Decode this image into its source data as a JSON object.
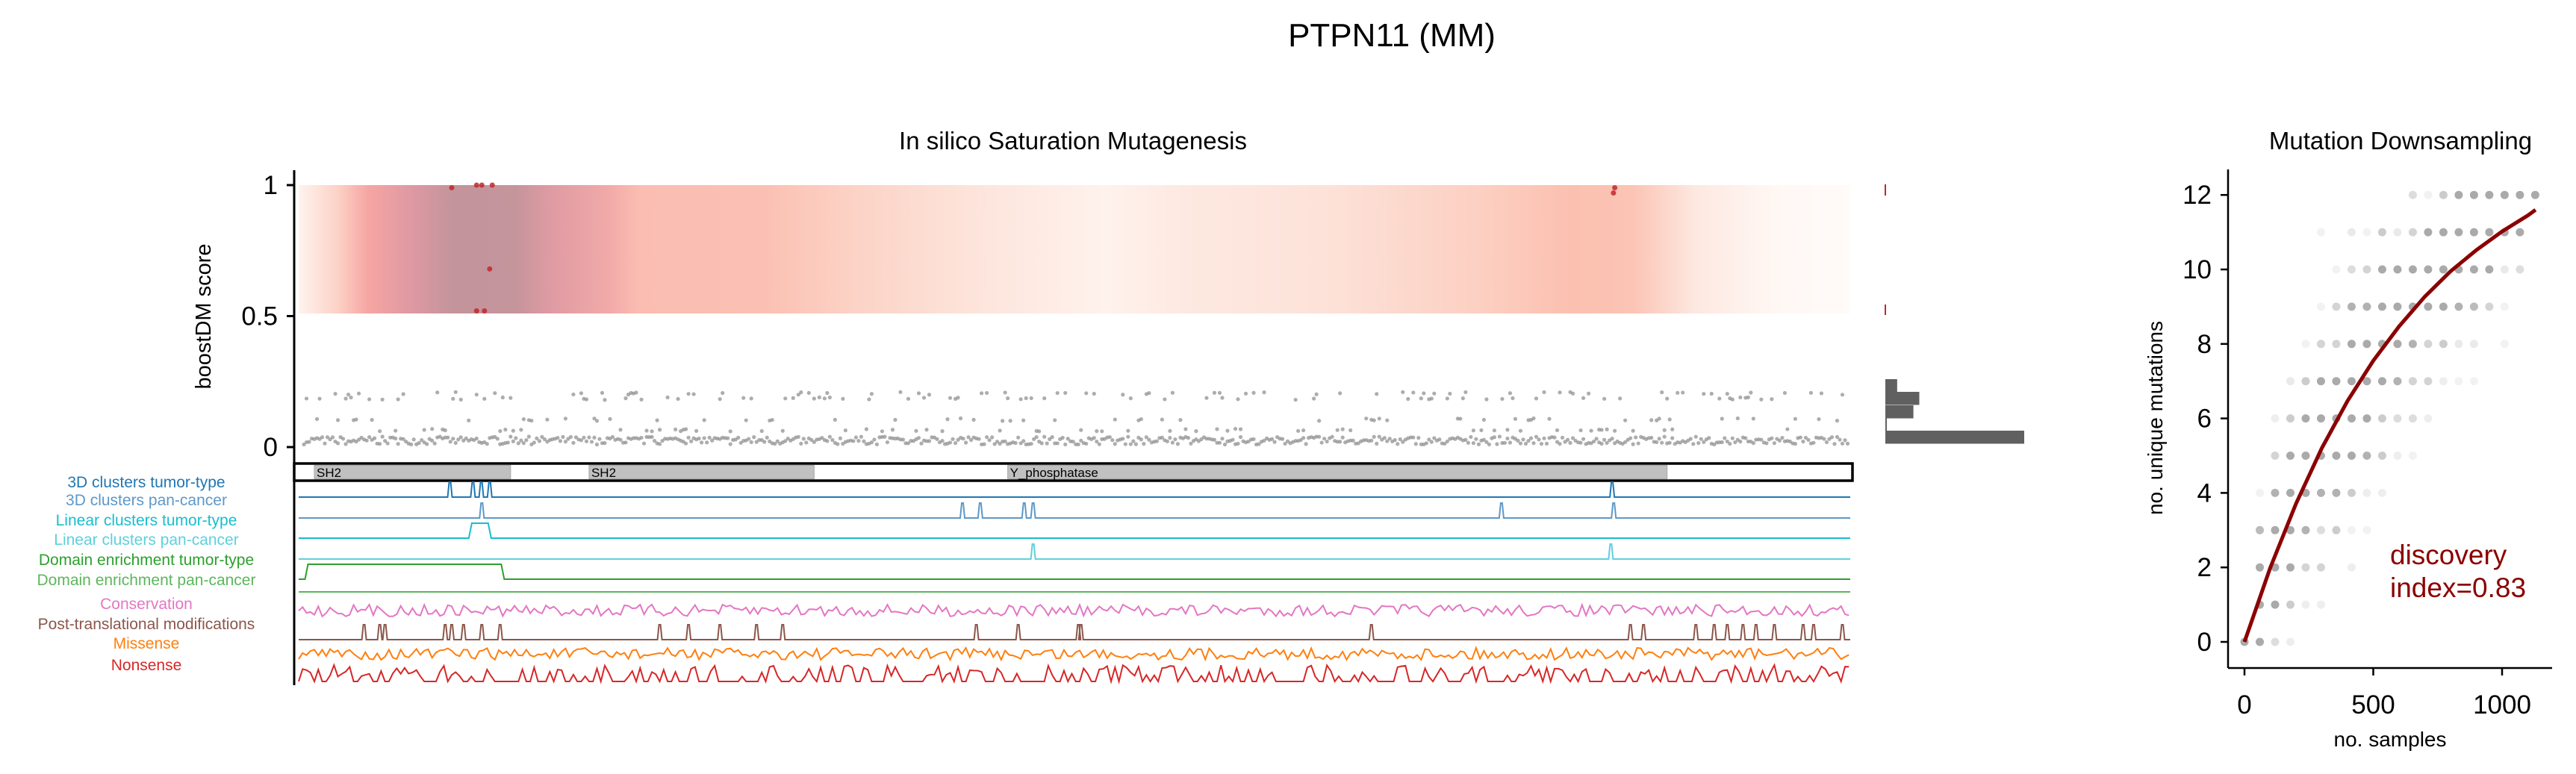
{
  "figure": {
    "title": "PTPN11 (MM)"
  },
  "chart_data": [
    {
      "type": "scatter",
      "title": "In silico Saturation Mutagenesis",
      "ylabel": "boostDM score",
      "xlabel": "",
      "ylim": [
        0,
        1
      ],
      "yticks": [
        "0",
        "0.5",
        "1"
      ],
      "ytick_values": [
        0,
        0.5,
        1
      ],
      "protein_length": 593,
      "domains": [
        {
          "name": "SH2",
          "start": 6,
          "end": 81
        },
        {
          "name": "SH2",
          "start": 111,
          "end": 197
        },
        {
          "name": "Y_phosphatase",
          "start": 271,
          "end": 523
        }
      ],
      "driver_mutations": [
        {
          "pos": 58.5,
          "score": 0.99
        },
        {
          "pos": 68,
          "score": 1.0
        },
        {
          "pos": 70,
          "score": 1.0
        },
        {
          "pos": 74,
          "score": 1.0
        },
        {
          "pos": 73,
          "score": 0.68
        },
        {
          "pos": 68,
          "score": 0.52
        },
        {
          "pos": 71,
          "score": 0.52
        },
        {
          "pos": 503,
          "score": 0.99
        },
        {
          "pos": 502.5,
          "score": 0.97
        }
      ],
      "score_histogram": {
        "bins": [
          "0-0.04",
          "0.04-0.08",
          "0.08-0.12",
          "0.12-0.16",
          "0.16-0.2"
        ],
        "counts": [
          188,
          2,
          38,
          46,
          16
        ]
      },
      "tracks": [
        {
          "label": "3D clusters tumor-type",
          "color": "#1f77b4",
          "kind": "peaks",
          "peaks": [
            57.8,
            66.6,
            69.8,
            73,
            502
          ]
        },
        {
          "label": "3D clusters pan-cancer",
          "color": "#5e98c8",
          "kind": "peaks",
          "peaks": [
            70,
            253.7,
            260.5,
            277.3,
            280.7,
            459.7,
            502.6
          ]
        },
        {
          "label": "Linear clusters tumor-type",
          "color": "#17becf",
          "kind": "step",
          "ranges": [
            [
              65.6,
              73
            ]
          ]
        },
        {
          "label": "Linear clusters pan-cancer",
          "color": "#5fd0dc",
          "kind": "peaks",
          "peaks": [
            280.7,
            501.5
          ]
        },
        {
          "label": "Domain enrichment tumor-type",
          "color": "#2ca02c",
          "kind": "step",
          "ranges": [
            [
              3,
              78
            ]
          ]
        },
        {
          "label": "Domain enrichment pan-cancer",
          "color": "#5db65d",
          "kind": "flat"
        },
        {
          "label": "Conservation",
          "color": "#e377c2",
          "kind": "noise"
        },
        {
          "label": "Post-translational modifications",
          "color": "#8c564b",
          "kind": "peaks",
          "peaks": [
            25,
            31,
            33,
            56,
            58.5,
            63,
            70,
            77,
            138,
            149,
            161,
            175,
            185,
            259,
            275,
            298,
            299,
            410,
            509,
            514,
            534,
            541,
            546,
            552,
            557,
            564,
            575,
            579,
            590
          ]
        },
        {
          "label": "Missense",
          "color": "#ff7f0e",
          "kind": "noise"
        },
        {
          "label": "Nonsense",
          "color": "#d62728",
          "kind": "spikes"
        }
      ]
    },
    {
      "type": "scatter",
      "title": "Mutation Downsampling",
      "xlabel": "no. samples",
      "ylabel": "no. unique mutations",
      "xlim": [
        -40,
        1160
      ],
      "ylim": [
        -0.5,
        12.7
      ],
      "xticks": [
        0,
        500,
        1000
      ],
      "yticks": [
        0,
        2,
        4,
        6,
        8,
        10,
        12
      ],
      "sample_step": 59.4,
      "points_by_y": {
        "0": [
          [
            0,
            0.5
          ],
          [
            1,
            0.5
          ],
          [
            2,
            0.2
          ],
          [
            3,
            0.1
          ]
        ],
        "1": [
          [
            1,
            0.5
          ],
          [
            2,
            0.5
          ],
          [
            3,
            0.3
          ],
          [
            4,
            0.1
          ],
          [
            5,
            0.1
          ]
        ],
        "2": [
          [
            1,
            0.5
          ],
          [
            2,
            0.5
          ],
          [
            3,
            0.5
          ],
          [
            4,
            0.25
          ],
          [
            5,
            0.25
          ],
          [
            7,
            0.1
          ]
        ],
        "3": [
          [
            1,
            0.4
          ],
          [
            2,
            0.5
          ],
          [
            3,
            0.5
          ],
          [
            4,
            0.45
          ],
          [
            5,
            0.2
          ],
          [
            6,
            0.3
          ],
          [
            7,
            0.08
          ],
          [
            8,
            0.08
          ]
        ],
        "4": [
          [
            1,
            0.08
          ],
          [
            2,
            0.45
          ],
          [
            3,
            0.5
          ],
          [
            4,
            0.5
          ],
          [
            5,
            0.45
          ],
          [
            6,
            0.45
          ],
          [
            7,
            0.3
          ],
          [
            8,
            0.1
          ],
          [
            9,
            0.1
          ]
        ],
        "5": [
          [
            2,
            0.25
          ],
          [
            3,
            0.5
          ],
          [
            4,
            0.5
          ],
          [
            5,
            0.5
          ],
          [
            6,
            0.5
          ],
          [
            7,
            0.5
          ],
          [
            8,
            0.45
          ],
          [
            9,
            0.3
          ],
          [
            10,
            0.1
          ],
          [
            11,
            0.08
          ]
        ],
        "6": [
          [
            2,
            0.1
          ],
          [
            3,
            0.3
          ],
          [
            4,
            0.5
          ],
          [
            5,
            0.5
          ],
          [
            6,
            0.5
          ],
          [
            7,
            0.5
          ],
          [
            8,
            0.5
          ],
          [
            9,
            0.3
          ],
          [
            10,
            0.2
          ],
          [
            11,
            0.2
          ],
          [
            12,
            0.1
          ]
        ],
        "7": [
          [
            3,
            0.12
          ],
          [
            4,
            0.3
          ],
          [
            5,
            0.5
          ],
          [
            6,
            0.5
          ],
          [
            7,
            0.5
          ],
          [
            8,
            0.5
          ],
          [
            9,
            0.5
          ],
          [
            10,
            0.45
          ],
          [
            11,
            0.25
          ],
          [
            12,
            0.25
          ],
          [
            13,
            0.1
          ],
          [
            14,
            0.08
          ],
          [
            15,
            0.08
          ]
        ],
        "8": [
          [
            4,
            0.08
          ],
          [
            5,
            0.25
          ],
          [
            6,
            0.25
          ],
          [
            7,
            0.5
          ],
          [
            8,
            0.5
          ],
          [
            9,
            0.5
          ],
          [
            10,
            0.5
          ],
          [
            11,
            0.45
          ],
          [
            12,
            0.25
          ],
          [
            13,
            0.3
          ],
          [
            14,
            0.12
          ],
          [
            15,
            0.12
          ],
          [
            17,
            0.08
          ]
        ],
        "9": [
          [
            5,
            0.08
          ],
          [
            6,
            0.25
          ],
          [
            7,
            0.45
          ],
          [
            8,
            0.45
          ],
          [
            9,
            0.5
          ],
          [
            10,
            0.5
          ],
          [
            11,
            0.5
          ],
          [
            12,
            0.5
          ],
          [
            13,
            0.5
          ],
          [
            14,
            0.45
          ],
          [
            15,
            0.4
          ],
          [
            16,
            0.25
          ],
          [
            17,
            0.08
          ]
        ],
        "10": [
          [
            6,
            0.08
          ],
          [
            7,
            0.2
          ],
          [
            8,
            0.25
          ],
          [
            9,
            0.5
          ],
          [
            10,
            0.5
          ],
          [
            11,
            0.5
          ],
          [
            12,
            0.5
          ],
          [
            13,
            0.5
          ],
          [
            14,
            0.5
          ],
          [
            15,
            0.5
          ],
          [
            16,
            0.5
          ],
          [
            17,
            0.12
          ],
          [
            18,
            0.2
          ]
        ],
        "11": [
          [
            5,
            0.08
          ],
          [
            7,
            0.12
          ],
          [
            8,
            0.08
          ],
          [
            9,
            0.3
          ],
          [
            10,
            0.12
          ],
          [
            11,
            0.25
          ],
          [
            12,
            0.5
          ],
          [
            13,
            0.5
          ],
          [
            14,
            0.5
          ],
          [
            15,
            0.5
          ],
          [
            16,
            0.5
          ],
          [
            17,
            0.5
          ],
          [
            18,
            0.5
          ]
        ],
        "12": [
          [
            11,
            0.2
          ],
          [
            12,
            0.08
          ],
          [
            13,
            0.3
          ],
          [
            14,
            0.5
          ],
          [
            15,
            0.5
          ],
          [
            16,
            0.5
          ],
          [
            17,
            0.5
          ],
          [
            18,
            0.5
          ],
          [
            19,
            0.5
          ]
        ]
      },
      "fit_curve": {
        "x": [
          0,
          100,
          200,
          300,
          400,
          500,
          600,
          700,
          800,
          900,
          1000,
          1100,
          1130
        ],
        "y": [
          0,
          1.99,
          3.71,
          5.2,
          6.47,
          7.55,
          8.47,
          9.27,
          9.95,
          10.52,
          11.02,
          11.45,
          11.6
        ],
        "color": "#8b0000"
      },
      "annotation": {
        "line1": "discovery",
        "line2": "index=0.83",
        "color": "#8b0000"
      }
    }
  ]
}
